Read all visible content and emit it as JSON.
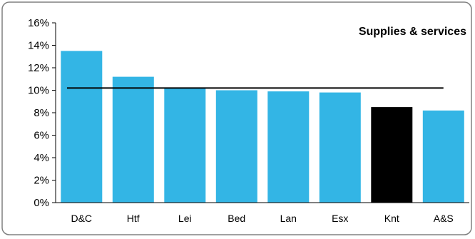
{
  "chart_data": {
    "type": "bar",
    "title": "Supplies & services",
    "categories": [
      "D&C",
      "Htf",
      "Lei",
      "Bed",
      "Lan",
      "Esx",
      "Knt",
      "A&S"
    ],
    "values": [
      13.5,
      11.2,
      10.2,
      10.0,
      9.9,
      9.8,
      8.5,
      8.2
    ],
    "bar_colors": [
      "#33b5e5",
      "#33b5e5",
      "#33b5e5",
      "#33b5e5",
      "#33b5e5",
      "#33b5e5",
      "#000000",
      "#33b5e5"
    ],
    "highlight_category": "Knt",
    "average_line": 10.2,
    "ylim": [
      0,
      16
    ],
    "y_ticks": [
      0,
      2,
      4,
      6,
      8,
      10,
      12,
      14,
      16
    ],
    "y_tick_labels": [
      "0%",
      "2%",
      "4%",
      "6%",
      "8%",
      "10%",
      "12%",
      "14%",
      "16%"
    ],
    "y_unit": "%",
    "grid": false,
    "xlabel": "",
    "ylabel": ""
  }
}
